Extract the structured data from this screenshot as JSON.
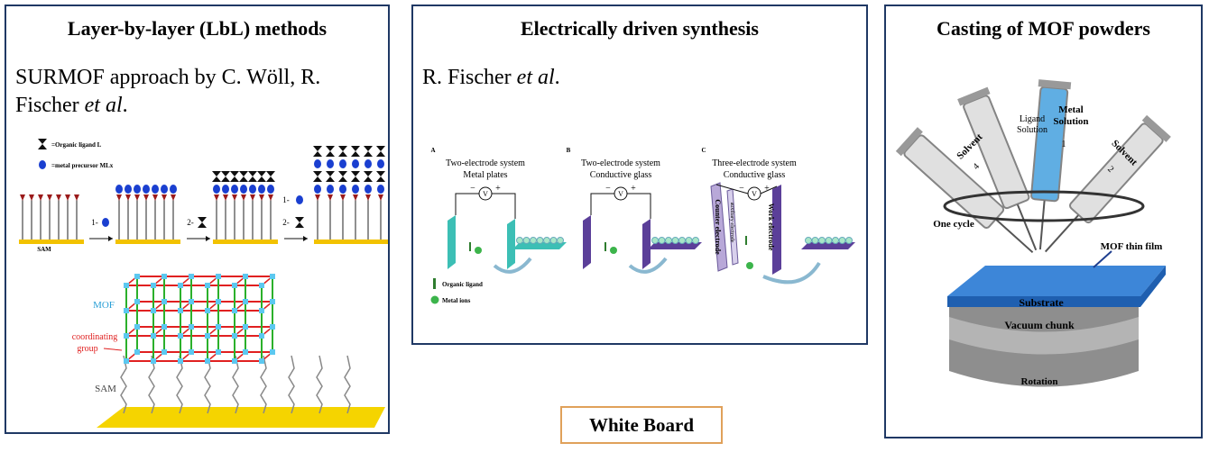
{
  "panels": [
    {
      "title": "Layer-by-layer (LbL) methods",
      "text": [
        "SURMOF approach by C. Wöll, R. Fischer ",
        "et al",
        "."
      ],
      "figure": {
        "legend": [
          "=Organic ligand  L",
          "=metal precursor  MLx"
        ],
        "sam": "SAM",
        "steps": [
          "1-",
          "2-",
          "1-",
          "2-"
        ],
        "mof": "MOF",
        "coordinating": [
          "coordinating",
          "group"
        ],
        "sam_label": "SAM"
      }
    },
    {
      "title": "Electrically driven synthesis",
      "text": [
        "R. Fischer ",
        "et al",
        "."
      ],
      "figure": {
        "subfigures": [
          {
            "letter": "A",
            "caption": [
              "Two-electrode system",
              "Metal plates"
            ]
          },
          {
            "letter": "B",
            "caption": [
              "Two-electrode system",
              "Conductive glass"
            ]
          },
          {
            "letter": "C",
            "caption": [
              "Three-electrode system",
              "Conductive glass"
            ]
          }
        ],
        "meter": "V",
        "signs": [
          "−",
          "+"
        ],
        "legend": [
          "Organic ligand",
          "Metal ions"
        ],
        "electrodes": [
          "Counter electrode",
          "auxiliary electrode",
          "Work electrode"
        ]
      }
    },
    {
      "title": "Casting of MOF powders",
      "figure": {
        "syringes": [
          [
            "Solvent"
          ],
          [
            "Ligand",
            "Solution"
          ],
          [
            "Metal",
            "Solution"
          ],
          [
            "Solvent"
          ]
        ],
        "numbers": [
          "4",
          "1",
          "2"
        ],
        "cycle": "One cycle",
        "film": "MOF thin film",
        "substrate": "Substrate",
        "chuck": "Vacuum chunk",
        "rotation": "Rotation"
      }
    }
  ],
  "whiteboard": "White Board"
}
